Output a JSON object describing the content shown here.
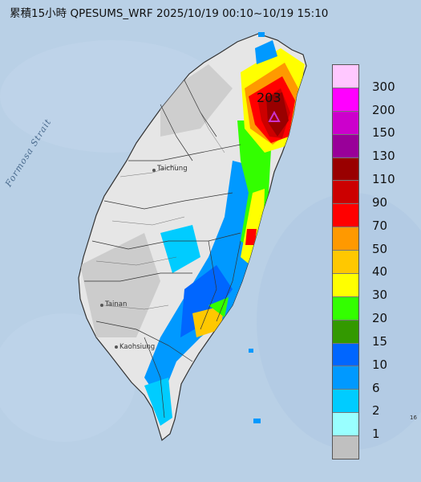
{
  "title": "累積15小時 QPESUMS_WRF 2025/10/19 00:10~10/19 15:10",
  "strait_label": "Formosa Strait",
  "peak_value": "203",
  "cities": {
    "taichung": "Taichung",
    "tainan": "Tainan",
    "kaohsiung": "Kaohsiung"
  },
  "edge_label": "16",
  "legend": {
    "unit_labels": [
      "300",
      "200",
      "150",
      "130",
      "110",
      "90",
      "70",
      "50",
      "40",
      "30",
      "20",
      "15",
      "10",
      "6",
      "2",
      "1"
    ],
    "colors": [
      "#ffc8ff",
      "#ff00ff",
      "#cc00cc",
      "#990099",
      "#990000",
      "#cc0000",
      "#ff0000",
      "#ff9900",
      "#ffc800",
      "#ffff00",
      "#33ff00",
      "#339900",
      "#0066ff",
      "#0099ff",
      "#00ccff",
      "#99ffff",
      "#c0c0c0"
    ]
  },
  "colors": {
    "ocean": "#b9d0e6",
    "land": "#e6e6e6",
    "accent_triangle": "#cc33cc"
  }
}
